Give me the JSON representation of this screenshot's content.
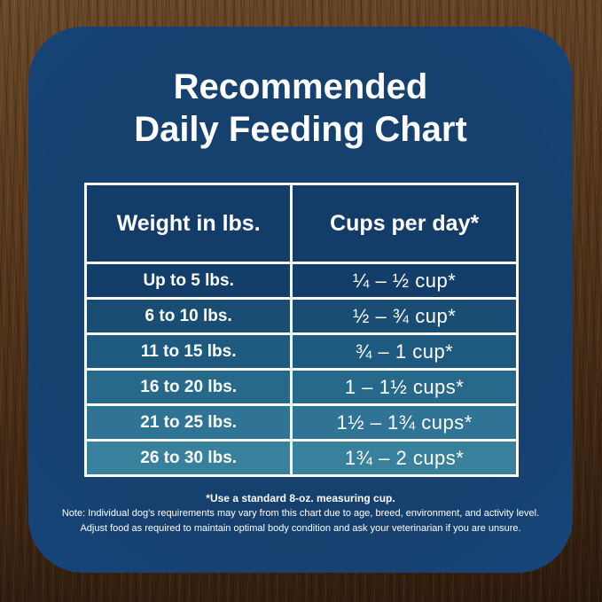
{
  "card": {
    "title_line1": "Recommended",
    "title_line2": "Daily Feeding Chart"
  },
  "chart_data": {
    "type": "table",
    "title": "Recommended Daily Feeding Chart",
    "columns": [
      "Weight in lbs.",
      "Cups per day*"
    ],
    "rows": [
      [
        "Up to 5 lbs.",
        "¼ – ½ cup*"
      ],
      [
        "6 to 10 lbs.",
        "½ – ¾ cup*"
      ],
      [
        "11 to 15 lbs.",
        "¾ – 1 cup*"
      ],
      [
        "16 to 20 lbs.",
        "1 – 1½ cups*"
      ],
      [
        "21 to 25 lbs.",
        "1½ – 1¾ cups*"
      ],
      [
        "26 to 30 lbs.",
        "1¾ – 2 cups*"
      ]
    ],
    "weight_ranges_lbs": [
      [
        0,
        5
      ],
      [
        6,
        10
      ],
      [
        11,
        15
      ],
      [
        16,
        20
      ],
      [
        21,
        25
      ],
      [
        26,
        30
      ]
    ],
    "cups_ranges": [
      [
        0.25,
        0.5
      ],
      [
        0.5,
        0.75
      ],
      [
        0.75,
        1
      ],
      [
        1,
        1.5
      ],
      [
        1.5,
        1.75
      ],
      [
        1.75,
        2
      ]
    ],
    "footnote": "*Use a standard 8-oz. measuring cup."
  },
  "footnotes": {
    "line1": "*Use a standard 8-oz. measuring cup.",
    "line2": "Note: Individual dog's requirements may vary from this chart due to age, breed, environment, and activity level.",
    "line3": "Adjust food as required to maintain optimal body condition and ask your veterinarian if you are unsure."
  },
  "colors": {
    "card_bg_center": "#16406e",
    "card_bg_edge": "#1c4f91",
    "header_bg": "#133c68",
    "row_shades": [
      "#133e6a",
      "#1a4d74",
      "#1e5a80",
      "#27698a",
      "#2f7494",
      "#38809c"
    ],
    "table_border": "#ffffff",
    "text": "#ffffff",
    "wood_light": "#6b4a29",
    "wood_dark": "#2f1c0d"
  }
}
